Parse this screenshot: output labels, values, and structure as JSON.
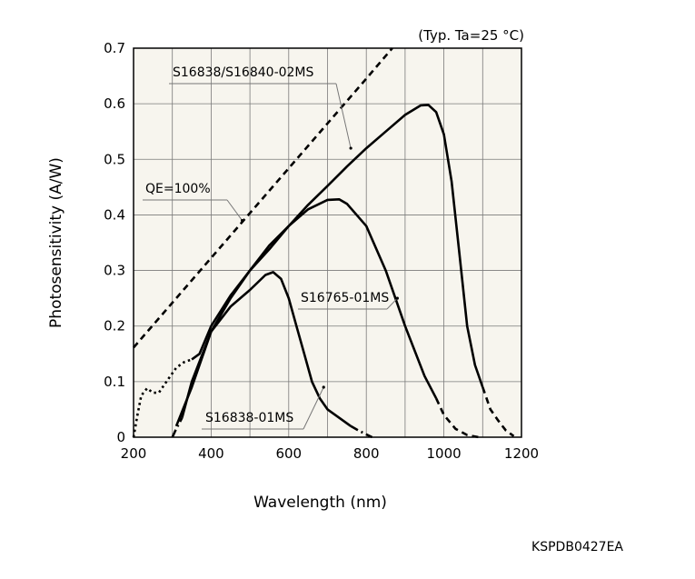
{
  "chart_data": {
    "type": "line",
    "note": "(Typ. Ta=25 °C)",
    "xlabel": "Wavelength (nm)",
    "ylabel": "Photosensitivity (A/W)",
    "xlim": [
      200,
      1200
    ],
    "ylim": [
      0,
      0.7
    ],
    "xticks": [
      200,
      400,
      600,
      800,
      1000,
      1200
    ],
    "yticks": [
      0,
      0.1,
      0.2,
      0.3,
      0.4,
      0.5,
      0.6,
      0.7
    ],
    "ytick_labels": [
      "0",
      "0.1",
      "0.2",
      "0.3",
      "0.4",
      "0.5",
      "0.6",
      "0.7"
    ],
    "grid": true,
    "background": "#f7f5ee",
    "series": [
      {
        "name": "QE=100%",
        "style": "dashed",
        "points": [
          [
            200,
            0.1613
          ],
          [
            800,
            0.6452
          ],
          [
            867,
            0.7
          ]
        ]
      },
      {
        "name": "S16838/S16840-02MS",
        "segments": [
          {
            "style": "dotted",
            "points": [
              [
                200,
                0.0
              ],
              [
                210,
                0.04
              ],
              [
                220,
                0.075
              ],
              [
                235,
                0.088
              ],
              [
                250,
                0.08
              ],
              [
                265,
                0.08
              ],
              [
                275,
                0.09
              ],
              [
                290,
                0.105
              ],
              [
                310,
                0.125
              ],
              [
                330,
                0.135
              ],
              [
                350,
                0.14
              ]
            ]
          },
          {
            "style": "solid",
            "points": [
              [
                350,
                0.14
              ],
              [
                370,
                0.15
              ],
              [
                400,
                0.2
              ],
              [
                450,
                0.255
              ],
              [
                500,
                0.3
              ],
              [
                550,
                0.338
              ],
              [
                600,
                0.38
              ],
              [
                650,
                0.418
              ],
              [
                700,
                0.452
              ],
              [
                750,
                0.487
              ],
              [
                800,
                0.52
              ],
              [
                850,
                0.55
              ],
              [
                900,
                0.58
              ],
              [
                940,
                0.597
              ],
              [
                960,
                0.598
              ],
              [
                980,
                0.585
              ],
              [
                1000,
                0.545
              ],
              [
                1020,
                0.46
              ],
              [
                1040,
                0.33
              ],
              [
                1060,
                0.2
              ],
              [
                1080,
                0.13
              ],
              [
                1100,
                0.09
              ]
            ]
          },
          {
            "style": "dashed",
            "points": [
              [
                1100,
                0.09
              ],
              [
                1120,
                0.05
              ],
              [
                1140,
                0.03
              ],
              [
                1160,
                0.012
              ],
              [
                1180,
                0.002
              ]
            ]
          }
        ]
      },
      {
        "name": "S16765-01MS",
        "segments": [
          {
            "style": "solid",
            "points": [
              [
                310,
                0.02
              ],
              [
                350,
                0.09
              ],
              [
                400,
                0.19
              ],
              [
                450,
                0.25
              ],
              [
                500,
                0.3
              ],
              [
                550,
                0.345
              ],
              [
                600,
                0.38
              ],
              [
                650,
                0.41
              ],
              [
                700,
                0.427
              ],
              [
                730,
                0.428
              ],
              [
                750,
                0.42
              ],
              [
                800,
                0.38
              ],
              [
                850,
                0.3
              ],
              [
                900,
                0.2
              ],
              [
                950,
                0.11
              ],
              [
                980,
                0.07
              ]
            ]
          },
          {
            "style": "dashed",
            "points": [
              [
                980,
                0.07
              ],
              [
                1000,
                0.04
              ],
              [
                1030,
                0.015
              ],
              [
                1060,
                0.004
              ],
              [
                1090,
                0.0
              ]
            ]
          }
        ]
      },
      {
        "name": "S16838-01MS",
        "segments": [
          {
            "style": "dashdot",
            "points": [
              [
                300,
                0.0
              ],
              [
                310,
                0.015
              ],
              [
                325,
                0.035
              ]
            ]
          },
          {
            "style": "solid",
            "points": [
              [
                325,
                0.035
              ],
              [
                350,
                0.1
              ],
              [
                400,
                0.19
              ],
              [
                450,
                0.235
              ],
              [
                500,
                0.265
              ],
              [
                540,
                0.292
              ],
              [
                560,
                0.297
              ],
              [
                580,
                0.285
              ],
              [
                600,
                0.25
              ],
              [
                620,
                0.2
              ],
              [
                640,
                0.15
              ],
              [
                660,
                0.1
              ],
              [
                680,
                0.07
              ],
              [
                700,
                0.05
              ],
              [
                740,
                0.03
              ],
              [
                760,
                0.02
              ]
            ]
          },
          {
            "style": "dashdot",
            "points": [
              [
                760,
                0.02
              ],
              [
                780,
                0.012
              ],
              [
                800,
                0.005
              ],
              [
                815,
                0.0
              ]
            ]
          }
        ]
      }
    ],
    "annotations": [
      {
        "label": "S16838/S16840-02MS",
        "target": [
          760,
          0.52
        ]
      },
      {
        "label": "QE=100%",
        "target": [
          480,
          0.39
        ]
      },
      {
        "label": "S16765-01MS",
        "target": [
          880,
          0.25
        ]
      },
      {
        "label": "S16838-01MS",
        "target": [
          690,
          0.09
        ]
      }
    ]
  },
  "figure_code": "KSPDB0427EA"
}
